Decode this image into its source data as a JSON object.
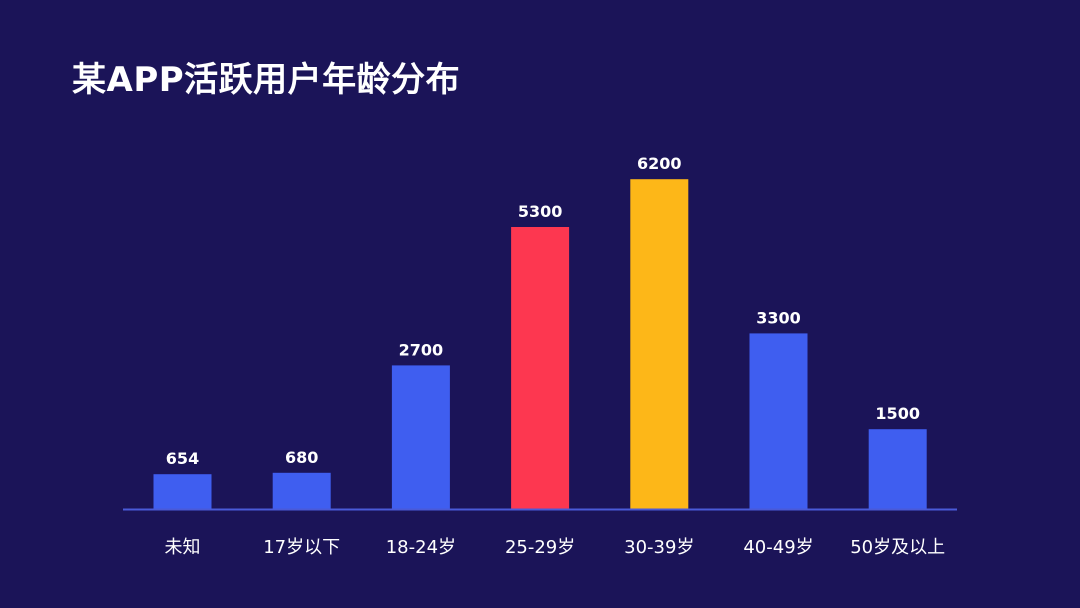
{
  "chart_data": {
    "type": "bar",
    "title": "某APP活跃用户年龄分布",
    "categories": [
      "未知",
      "17岁以下",
      "18-24岁",
      "25-29岁",
      "30-39岁",
      "40-49岁",
      "50岁及以上"
    ],
    "values": [
      654,
      680,
      2700,
      5300,
      6200,
      3300,
      1500
    ],
    "bar_colors": [
      "#3f5ef0",
      "#3f5ef0",
      "#3f5ef0",
      "#fd3750",
      "#fdb718",
      "#3f5ef0",
      "#3f5ef0"
    ],
    "data_labels": true,
    "grid": false,
    "legend": "none",
    "xlabel": "",
    "ylabel": "",
    "ylim": [
      0,
      6600
    ],
    "axis_color": "#4a5ad8"
  }
}
